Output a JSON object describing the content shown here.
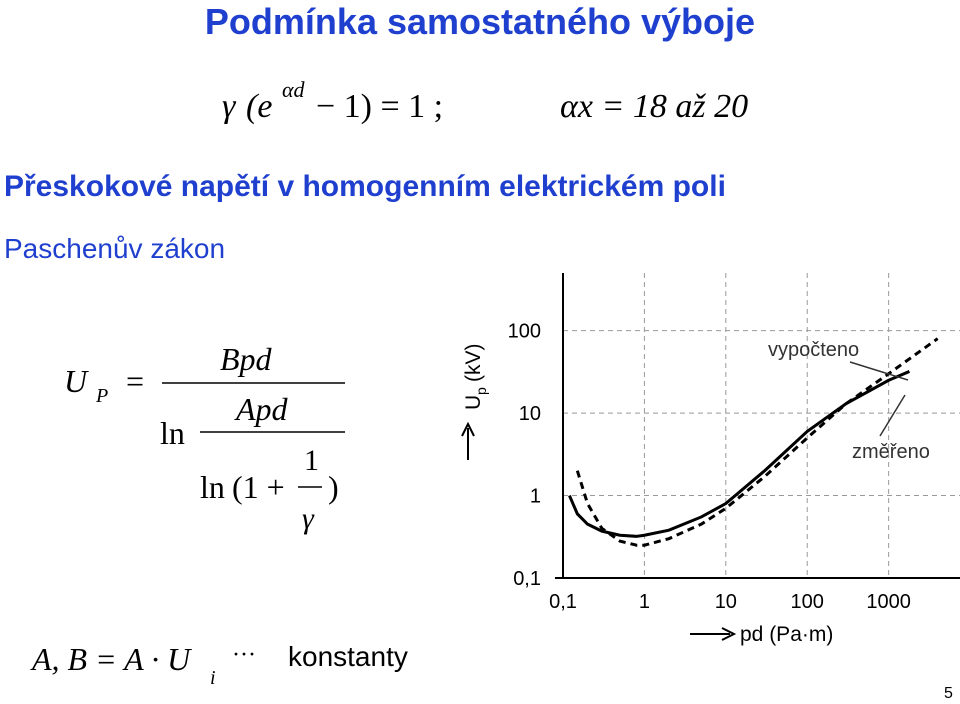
{
  "title": "Podmínka samostatného výboje",
  "formula1": [
    "γ",
    "(e",
    "αd",
    "− 1) = 1 ;"
  ],
  "formula2": "αx = 18 až 20",
  "heading": "Přeskokové napětí v homogenním elektrickém poli",
  "subheading": "Paschenův zákon",
  "paschen": {
    "lhs": "U",
    "lhs_sub": "P",
    "eq": "=",
    "num": "Bpd",
    "ln1": "ln",
    "num2": "Apd",
    "ln2": "ln",
    "paren": "(1 +",
    "one": "1",
    "gamma": "γ",
    "close": ")"
  },
  "footer": {
    "main": "A, B = A · U",
    "sub": "i",
    "dots": "···",
    "text": "konstanty"
  },
  "page_number": "5",
  "chart_data": {
    "type": "line",
    "xlabel": "pd (Pa·m)",
    "ylabel": "U",
    "ylabel_sub": "p",
    "ylabel_unit": "(kV)",
    "log_x": true,
    "log_y": true,
    "grid": true,
    "xlim": [
      0.1,
      6000
    ],
    "ylim": [
      0.1,
      500
    ],
    "xticks": [
      {
        "value": 0.1,
        "label": "0,1"
      },
      1,
      10,
      100,
      1000
    ],
    "yticks": [
      {
        "value": 0.1,
        "label": "0,1"
      },
      1,
      10,
      100
    ],
    "series": [
      {
        "name": "změřeno",
        "color": "#000000",
        "dashed": false,
        "x": [
          0.12,
          0.15,
          0.2,
          0.3,
          0.5,
          0.8,
          1,
          2,
          5,
          10,
          30,
          100,
          300,
          1000,
          1800
        ],
        "values": [
          1.0,
          0.6,
          0.45,
          0.37,
          0.33,
          0.32,
          0.33,
          0.38,
          0.55,
          0.8,
          2,
          6,
          13,
          25,
          32
        ]
      },
      {
        "name": "vypočteno",
        "color": "#000000",
        "dashed": true,
        "x": [
          0.15,
          0.2,
          0.3,
          0.5,
          0.8,
          1,
          2,
          5,
          10,
          30,
          100,
          300,
          1000,
          4000
        ],
        "values": [
          2,
          0.8,
          0.4,
          0.28,
          0.25,
          0.25,
          0.3,
          0.45,
          0.7,
          1.7,
          5,
          13,
          30,
          80
        ]
      }
    ]
  }
}
